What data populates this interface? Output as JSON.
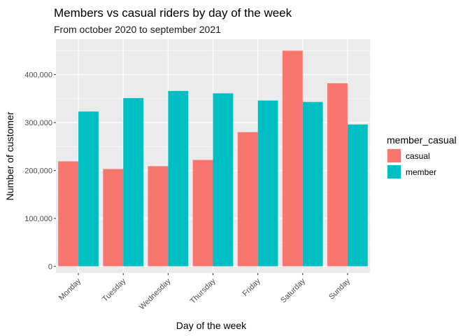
{
  "chart_data": {
    "type": "bar",
    "title": "Members vs casual riders by day of the week",
    "subtitle": "From october 2020 to september 2021",
    "xlabel": "Day of the week",
    "ylabel": "Number of customer",
    "categories": [
      "Monday",
      "Tuesday",
      "Wednesday",
      "Thursday",
      "Friday",
      "Saturday",
      "Sunday"
    ],
    "series": [
      {
        "name": "casual",
        "color": "#F8766D",
        "values": [
          219000,
          203000,
          209000,
          222000,
          280000,
          450000,
          382000
        ]
      },
      {
        "name": "member",
        "color": "#00BFC4",
        "values": [
          323000,
          351000,
          366000,
          361000,
          346000,
          343000,
          296000
        ]
      }
    ],
    "ylim": [
      -14000,
      474000
    ],
    "yticks": [
      0,
      100000,
      200000,
      300000,
      400000
    ],
    "ytick_labels": [
      "0",
      "100,000",
      "200,000",
      "300,000",
      "400,000"
    ],
    "legend_title": "member_casual",
    "legend_position": "right",
    "grid": true,
    "panel_background": "#EBEBEB"
  }
}
